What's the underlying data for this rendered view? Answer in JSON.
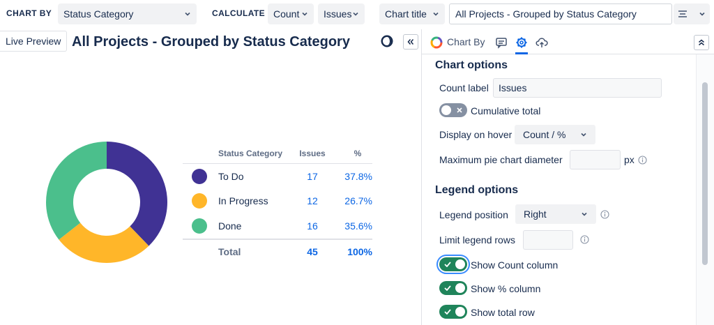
{
  "toolbar": {
    "chart_by_label": "CHART BY",
    "chart_by_value": "Status Category",
    "calculate_label": "CALCULATE",
    "calc_type_value": "Count",
    "calc_field_value": "Issues",
    "title_mode_value": "Chart title",
    "title_input_value": "All Projects - Grouped by Status Category"
  },
  "preview": {
    "live_preview_label": "Live Preview",
    "title": "All Projects - Grouped by Status Category"
  },
  "legend": {
    "headers": {
      "category": "Status Category",
      "issues": "Issues",
      "percent": "%"
    },
    "rows": [
      {
        "name": "To Do",
        "issues": "17",
        "percent": "37.8%",
        "color": "#403294"
      },
      {
        "name": "In Progress",
        "issues": "12",
        "percent": "26.7%",
        "color": "#ffb629"
      },
      {
        "name": "Done",
        "issues": "16",
        "percent": "35.6%",
        "color": "#4bbf8c"
      }
    ],
    "total": {
      "label": "Total",
      "issues": "45",
      "percent": "100%"
    }
  },
  "chart_data": {
    "type": "pie",
    "variant": "donut",
    "categories": [
      "To Do",
      "In Progress",
      "Done"
    ],
    "values": [
      17,
      12,
      16
    ],
    "colors": [
      "#403294",
      "#ffb629",
      "#4bbf8c"
    ]
  },
  "panel": {
    "tab_chart_by_label": "Chart By",
    "chart_options": {
      "heading": "Chart options",
      "count_label_label": "Count label",
      "count_label_value": "Issues",
      "cumulative_total_label": "Cumulative total",
      "cumulative_total_on": false,
      "display_on_hover_label": "Display on hover",
      "display_on_hover_value": "Count / %",
      "max_pie_diameter_label": "Maximum pie chart diameter",
      "max_pie_diameter_value": "",
      "max_pie_diameter_unit": "px"
    },
    "legend_options": {
      "heading": "Legend options",
      "legend_position_label": "Legend position",
      "legend_position_value": "Right",
      "limit_legend_rows_label": "Limit legend rows",
      "limit_legend_rows_value": "",
      "show_count_column_label": "Show Count column",
      "show_count_column_on": true,
      "show_percent_column_label": "Show % column",
      "show_percent_column_on": true,
      "show_total_row_label": "Show total row",
      "show_total_row_on": true
    }
  },
  "colors": {
    "accent": "#0c66e4",
    "toggle_on": "#1f845a",
    "toggle_off": "#8590a2",
    "text": "#172b4d"
  }
}
